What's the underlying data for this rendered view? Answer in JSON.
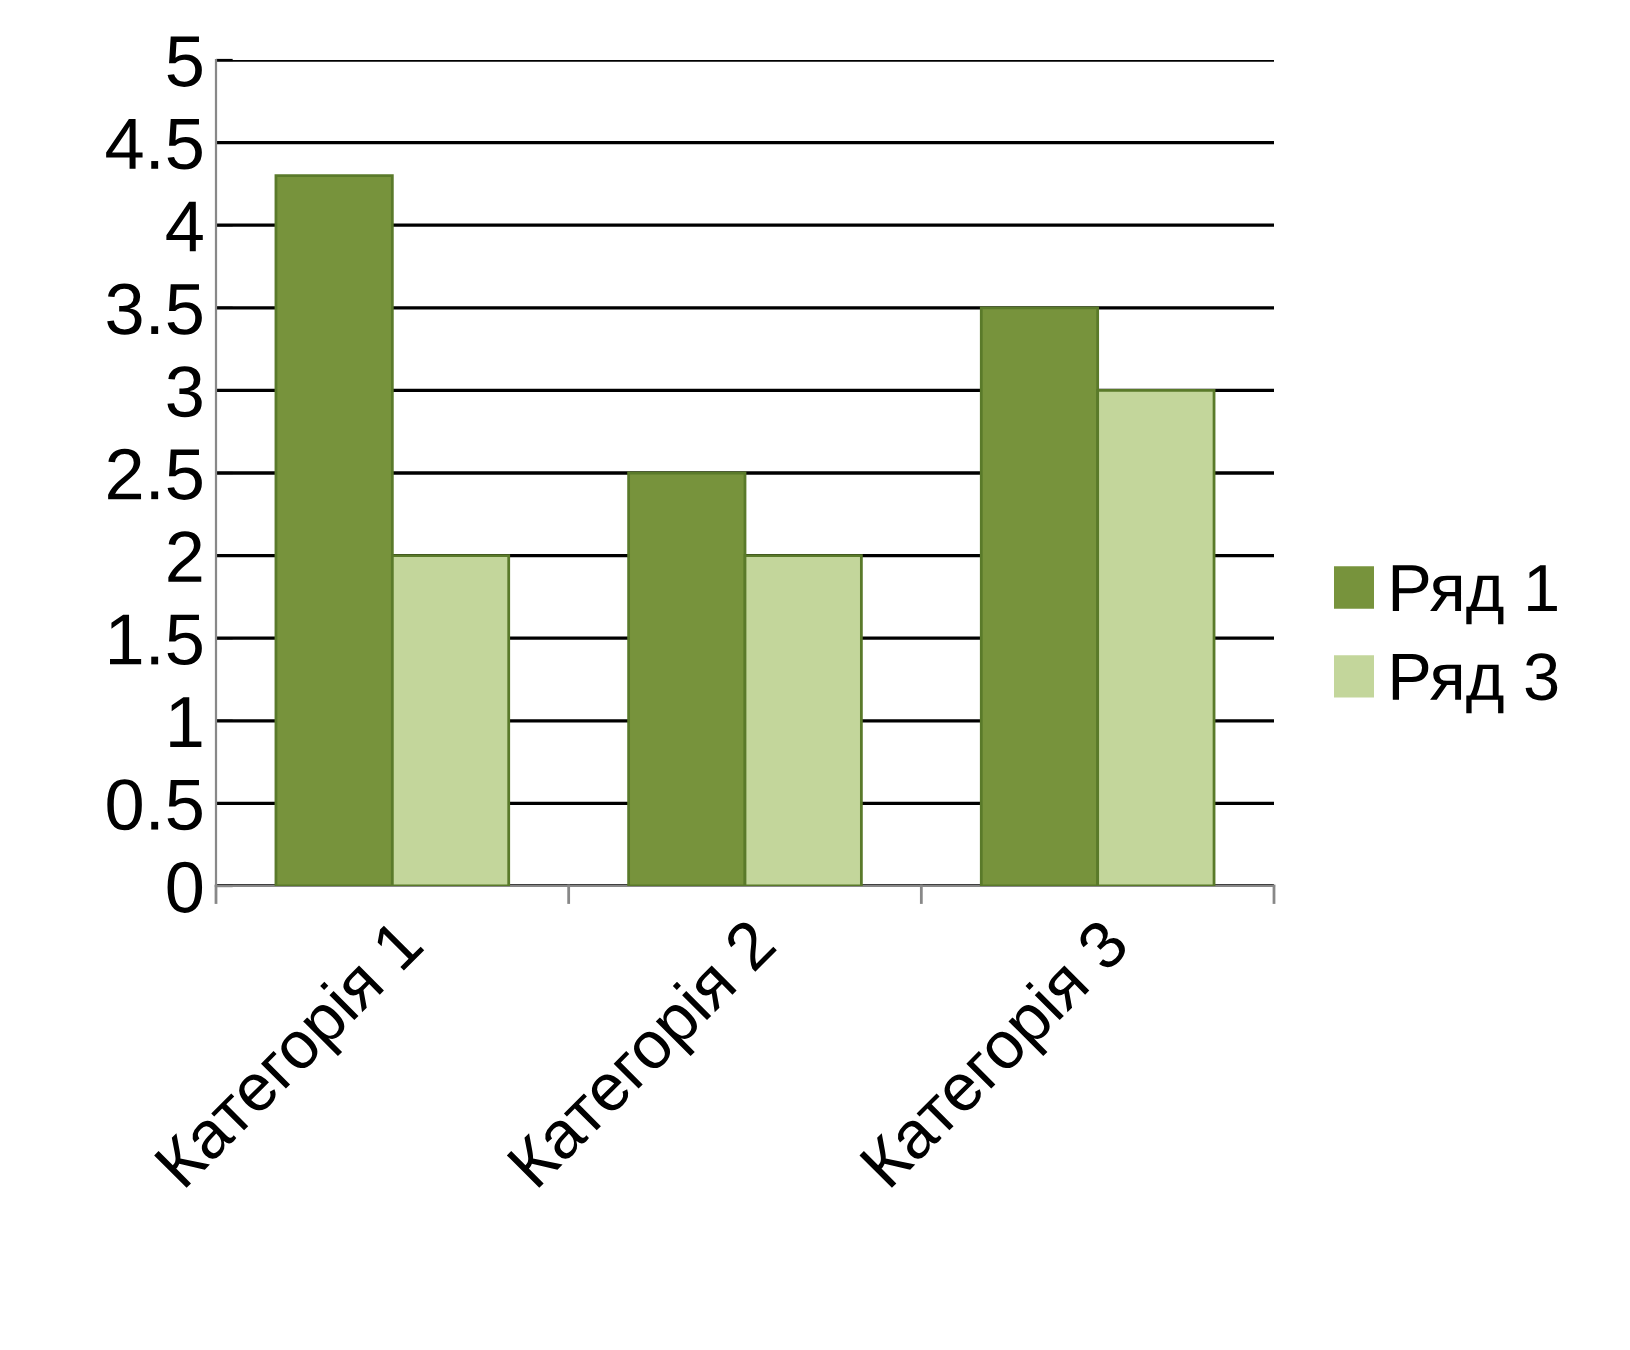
{
  "chart_data": {
    "type": "bar",
    "categories": [
      "Категорія 1",
      "Категорія 2",
      "Категорія 3"
    ],
    "series": [
      {
        "name": "Ряд 1",
        "color": "#77933c",
        "values": [
          4.3,
          2.5,
          3.5
        ]
      },
      {
        "name": "Ряд 3",
        "color": "#c3d69b",
        "values": [
          2,
          2,
          3
        ]
      }
    ],
    "ylim": [
      0,
      5
    ],
    "yticks": [
      0,
      0.5,
      1,
      1.5,
      2,
      2.5,
      3,
      3.5,
      4,
      4.5,
      5
    ],
    "grid": "y",
    "legend": "right"
  }
}
